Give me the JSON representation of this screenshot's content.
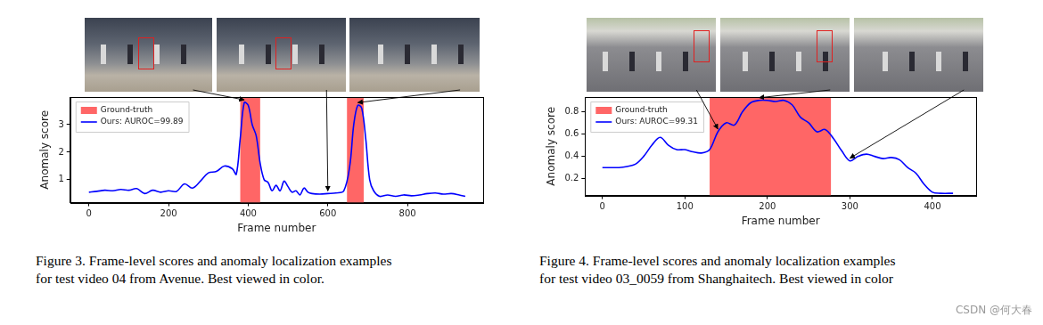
{
  "chart_data": [
    {
      "type": "line",
      "x_label": "Frame number",
      "y_label": "Anomaly score",
      "x": [
        0,
        20,
        40,
        60,
        80,
        100,
        120,
        140,
        160,
        180,
        200,
        220,
        240,
        260,
        280,
        300,
        320,
        340,
        360,
        370,
        380,
        390,
        400,
        410,
        420,
        430,
        440,
        450,
        460,
        470,
        480,
        490,
        500,
        510,
        520,
        530,
        540,
        550,
        560,
        580,
        600,
        620,
        640,
        655,
        665,
        675,
        685,
        695,
        705,
        715,
        730,
        750,
        770,
        790,
        810,
        830,
        850,
        870,
        890,
        910,
        930,
        945
      ],
      "series": [
        {
          "name": "Ours: AUROC=99.89",
          "color": "#0000ff",
          "values": [
            0.55,
            0.58,
            0.62,
            0.6,
            0.65,
            0.62,
            0.68,
            0.5,
            0.62,
            0.55,
            0.6,
            0.58,
            0.85,
            0.7,
            0.95,
            1.25,
            1.3,
            1.5,
            1.4,
            1.2,
            2.5,
            3.8,
            3.7,
            3.0,
            2.6,
            1.6,
            1.0,
            0.9,
            0.6,
            0.8,
            0.6,
            0.95,
            0.75,
            0.55,
            0.6,
            0.45,
            0.7,
            0.55,
            0.5,
            0.48,
            0.5,
            0.52,
            0.6,
            1.5,
            3.0,
            3.7,
            3.6,
            2.5,
            1.0,
            0.6,
            0.4,
            0.45,
            0.4,
            0.45,
            0.42,
            0.45,
            0.5,
            0.52,
            0.48,
            0.5,
            0.45,
            0.4
          ]
        }
      ],
      "ground_truth": {
        "name": "Ground-truth",
        "color": "#ff6666",
        "ranges": [
          [
            380,
            430
          ],
          [
            648,
            690
          ]
        ]
      },
      "arrow_frames": [
        390,
        600,
        675
      ],
      "xlim": [
        -47,
        990
      ],
      "ylim": [
        0.17,
        4.0
      ],
      "xticks": [
        0,
        200,
        400,
        600,
        800
      ],
      "yticks": [
        1,
        2,
        3
      ],
      "grid": false,
      "legend": "upper left",
      "caption": [
        "Figure 3. Frame-level scores and anomaly localization examples",
        "for test video 04 from Avenue. Best viewed in color."
      ]
    },
    {
      "type": "line",
      "x_label": "Frame number",
      "y_label": "Anomaly score",
      "x": [
        0,
        10,
        20,
        30,
        40,
        50,
        60,
        70,
        80,
        90,
        100,
        110,
        120,
        130,
        140,
        150,
        160,
        170,
        180,
        190,
        200,
        210,
        220,
        230,
        240,
        250,
        260,
        270,
        280,
        290,
        300,
        310,
        320,
        330,
        340,
        350,
        360,
        370,
        380,
        390,
        400,
        410,
        425
      ],
      "series": [
        {
          "name": "Ours: AUROC=99.31",
          "color": "#0000ff",
          "values": [
            0.3,
            0.3,
            0.3,
            0.31,
            0.33,
            0.4,
            0.5,
            0.57,
            0.5,
            0.46,
            0.46,
            0.44,
            0.43,
            0.46,
            0.62,
            0.7,
            0.68,
            0.8,
            0.88,
            0.9,
            0.9,
            0.89,
            0.9,
            0.86,
            0.75,
            0.7,
            0.62,
            0.64,
            0.56,
            0.45,
            0.36,
            0.4,
            0.42,
            0.4,
            0.38,
            0.39,
            0.37,
            0.3,
            0.25,
            0.15,
            0.08,
            0.07,
            0.07
          ]
        }
      ],
      "ground_truth": {
        "name": "Ground-truth",
        "color": "#ff6666",
        "ranges": [
          [
            130,
            277
          ]
        ]
      },
      "arrow_frames": [
        140,
        190,
        300
      ],
      "xlim": [
        -21,
        453
      ],
      "ylim": [
        0.05,
        0.93
      ],
      "xticks": [
        0,
        100,
        200,
        300,
        400
      ],
      "yticks": [
        0.2,
        0.4,
        0.6,
        0.8
      ],
      "grid": false,
      "legend": "upper left",
      "caption": [
        "Figure 4. Frame-level scores and anomaly localization examples",
        "for test video 03_0059 from Shanghaitech. Best viewed in color"
      ]
    }
  ],
  "watermark": "CSDN @何大春"
}
